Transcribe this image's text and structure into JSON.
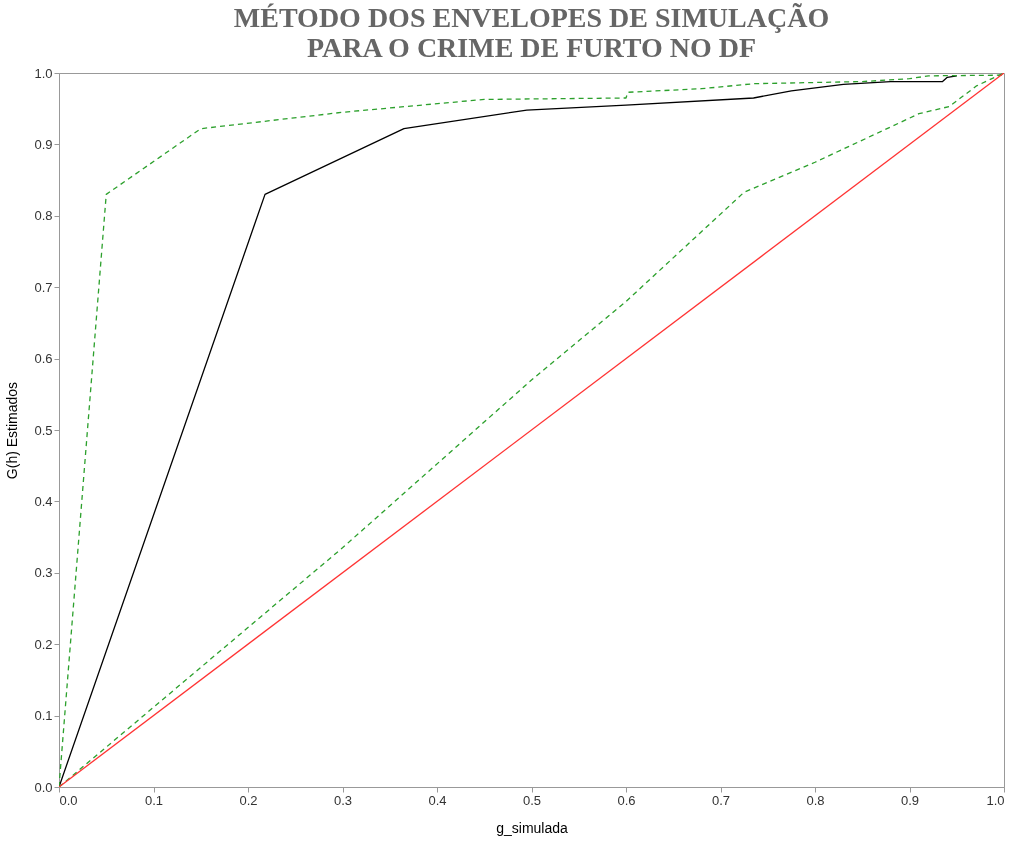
{
  "chart_data": {
    "type": "line",
    "title": [
      "MÉTODO DOS ENVELOPES DE SIMULAÇÃO",
      "PARA O CRIME DE FURTO NO DF"
    ],
    "xlabel": "g_simulada",
    "ylabel": "G(h) Estimados",
    "xlim": [
      0,
      1
    ],
    "ylim": [
      0,
      1
    ],
    "xticks": [
      {
        "value": 0,
        "label": "0.0"
      },
      0.1,
      0.2,
      0.3,
      0.4,
      0.5,
      0.6,
      0.7,
      0.8,
      0.9,
      {
        "value": 1,
        "label": "1.0"
      }
    ],
    "yticks": [
      {
        "value": 0,
        "label": "0.0"
      },
      0.1,
      0.2,
      0.3,
      0.4,
      0.5,
      0.6,
      0.7,
      0.8,
      0.9,
      {
        "value": 1,
        "label": "1.0"
      }
    ],
    "grid": false,
    "marker": "none",
    "series": [
      {
        "color": "#000000",
        "line_style": "solid",
        "x": [
          0,
          0.218,
          0.365,
          0.495,
          0.6,
          0.735,
          0.775,
          0.83,
          0.88,
          0.935,
          0.94,
          0.95
        ],
        "values": [
          0,
          0.83,
          0.922,
          0.948,
          0.955,
          0.965,
          0.975,
          0.984,
          0.988,
          0.988,
          0.994,
          0.996
        ]
      },
      {
        "color": "#2ca02c",
        "line_style": "dashed",
        "x": [
          0,
          0.05,
          0.15,
          0.3,
          0.45,
          0.6,
          0.602,
          0.68,
          0.735,
          0.85,
          0.9,
          0.92,
          1
        ],
        "values": [
          0,
          0.83,
          0.922,
          0.945,
          0.963,
          0.965,
          0.973,
          0.978,
          0.985,
          0.988,
          0.992,
          0.996,
          0.997
        ]
      },
      {
        "color": "#2ca02c",
        "line_style": "dashed",
        "x": [
          0,
          0.3,
          0.5,
          0.6,
          0.725,
          0.8,
          0.91,
          0.942,
          0.971,
          1
        ],
        "values": [
          0,
          0.335,
          0.57,
          0.68,
          0.833,
          0.875,
          0.943,
          0.953,
          0.982,
          1
        ]
      },
      {
        "color": "#ff3333",
        "line_style": "solid",
        "x": [
          0,
          1
        ],
        "values": [
          0,
          1
        ]
      }
    ]
  }
}
